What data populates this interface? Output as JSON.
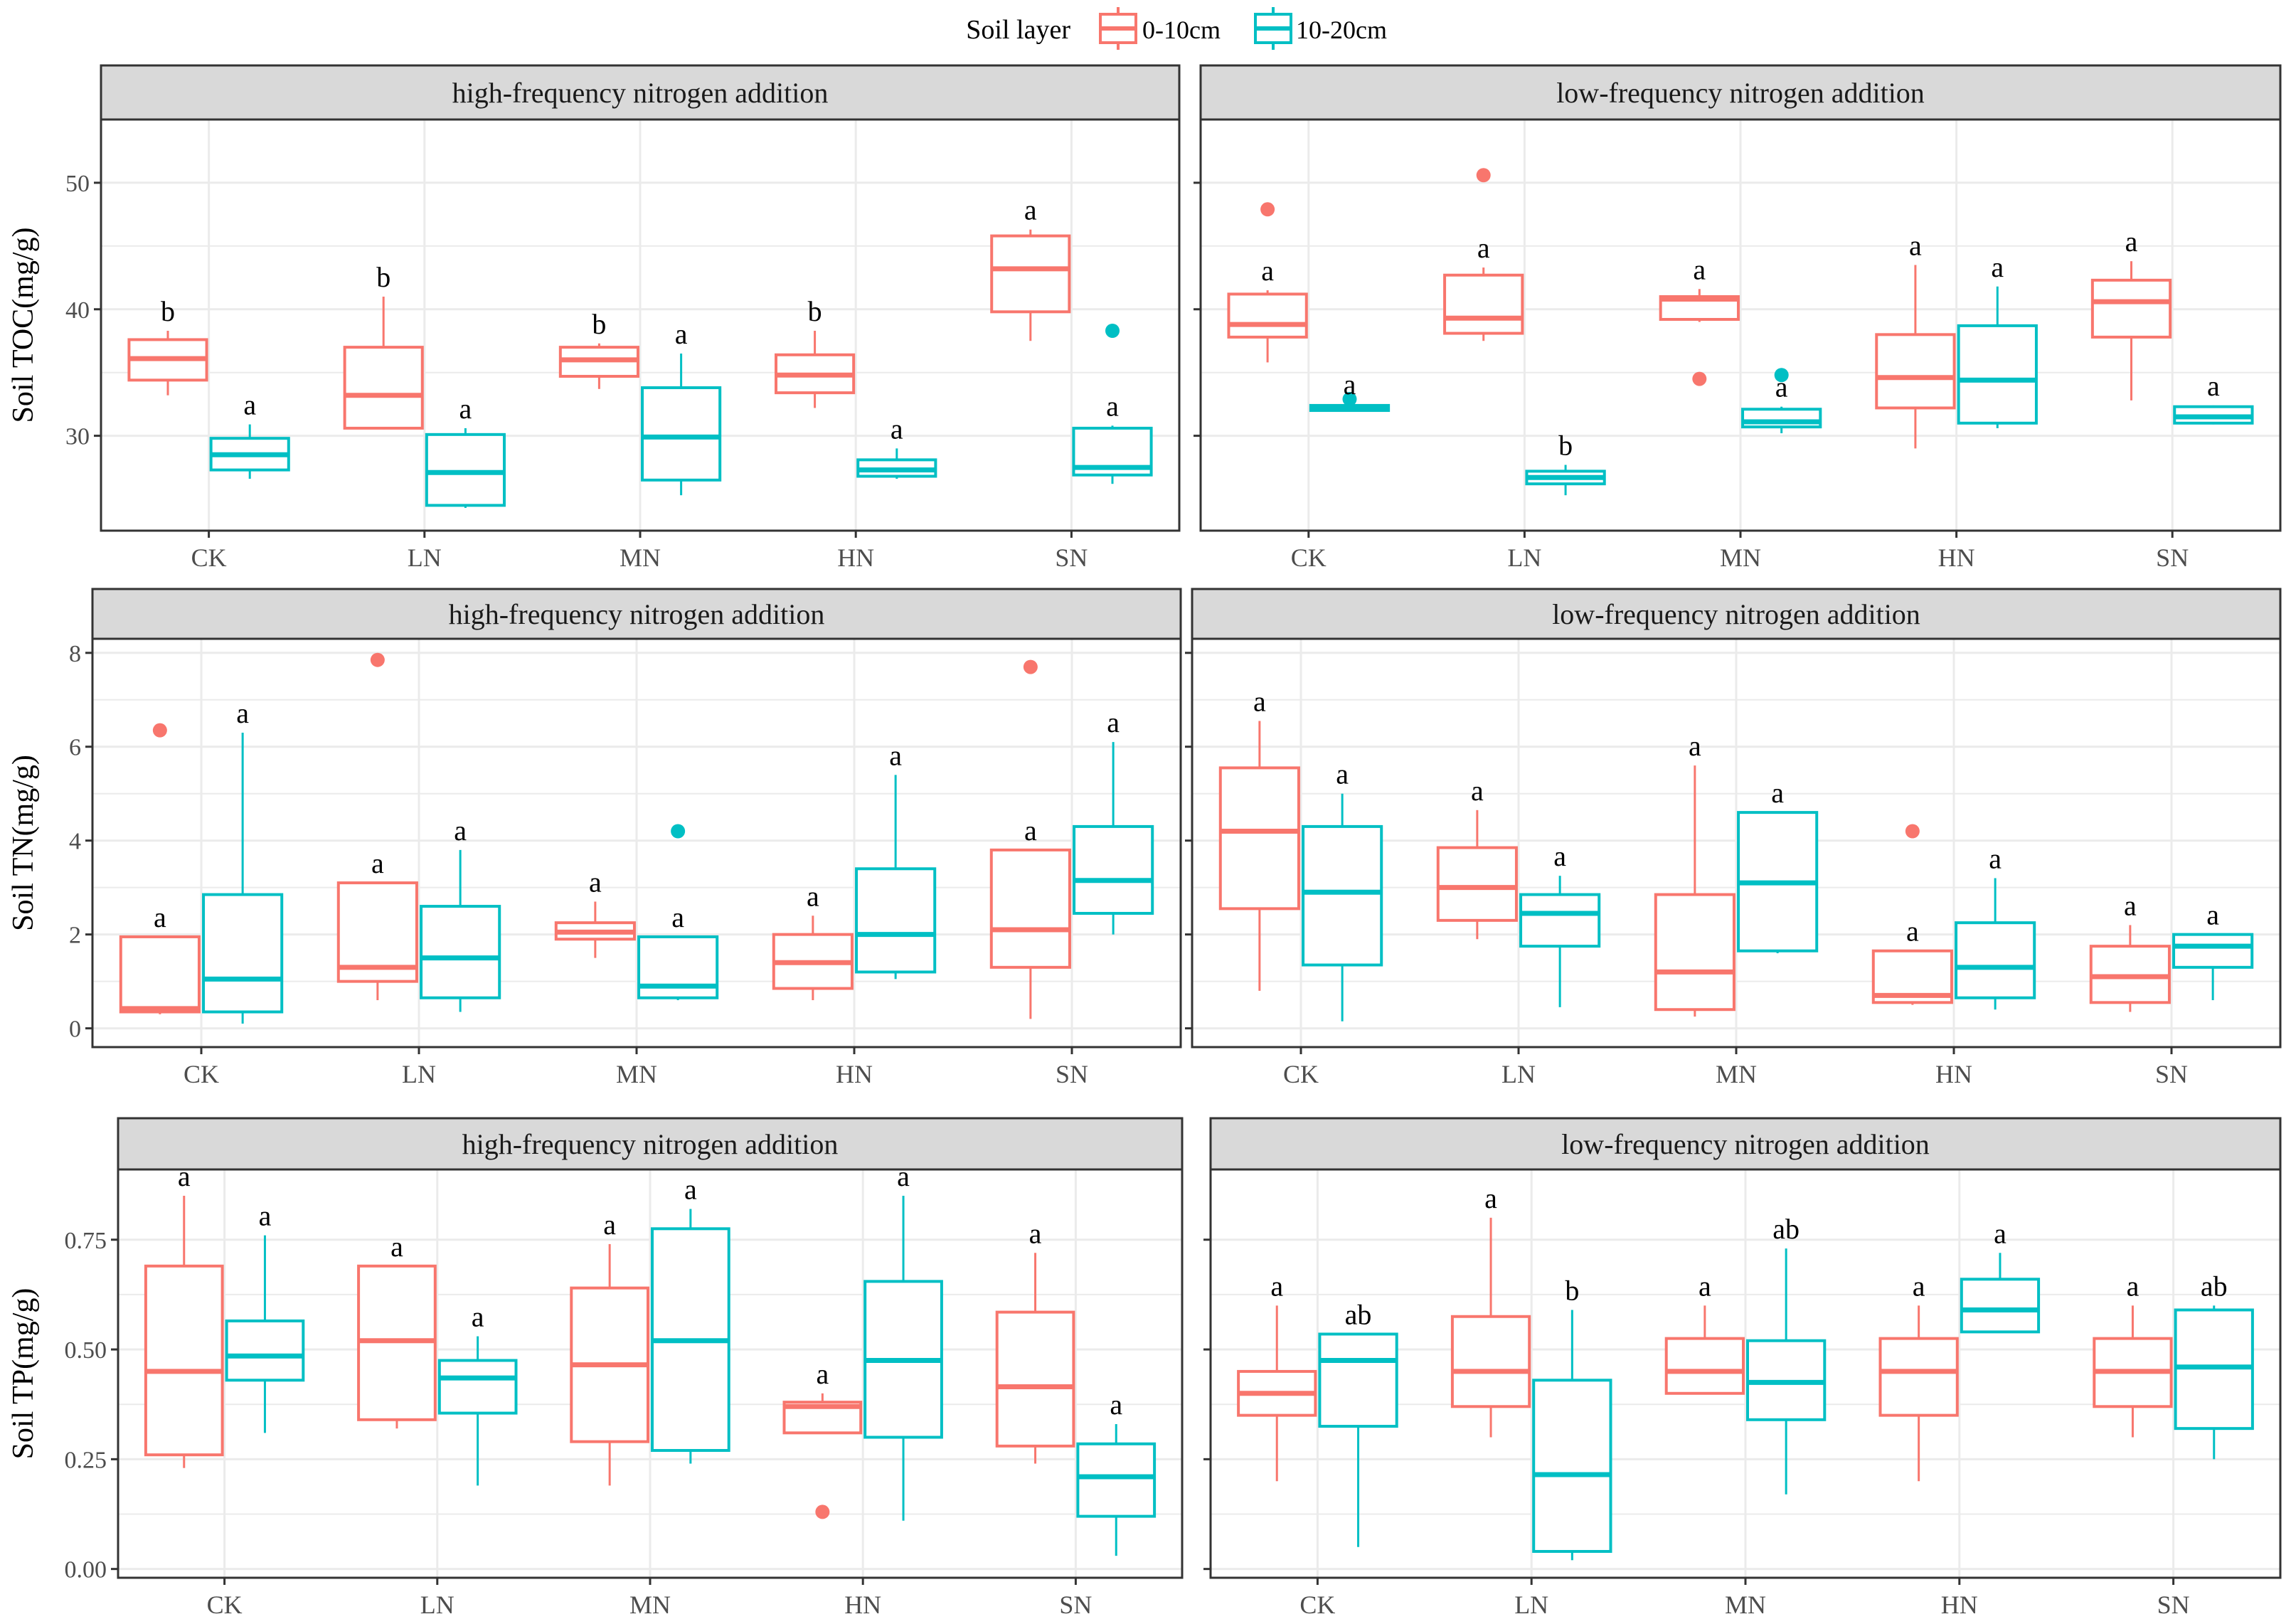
{
  "legend": {
    "title": "Soil layer",
    "entries": [
      {
        "label": "0-10cm",
        "color": "#F8766D"
      },
      {
        "label": "10-20cm",
        "color": "#00BFC4"
      }
    ]
  },
  "colors": {
    "layer_0_10": "#F8766D",
    "layer_10_20": "#00BFC4",
    "strip": "#D9D9D9",
    "grid": "#EBEBEB",
    "outline": "#333333"
  },
  "chart_data": [
    {
      "type": "box",
      "panel": "TOC high",
      "strip_label": "high-frequency nitrogen addition",
      "ylabel": "Soil TOC(mg/g)",
      "ylim": [
        22.5,
        55
      ],
      "yticks": [
        30,
        40,
        50
      ],
      "ytick_labels": [
        "30",
        "40",
        "50"
      ],
      "categories": [
        "CK",
        "LN",
        "MN",
        "HN",
        "SN"
      ],
      "series": [
        {
          "name": "0-10cm",
          "boxes": [
            {
              "min": 33.2,
              "q1": 34.4,
              "median": 36.1,
              "q3": 37.6,
              "max": 38.3,
              "outliers": [],
              "letter": "b"
            },
            {
              "min": 30.5,
              "q1": 30.6,
              "median": 33.2,
              "q3": 37.0,
              "max": 41.0,
              "outliers": [],
              "letter": "b"
            },
            {
              "min": 33.7,
              "q1": 34.7,
              "median": 36.0,
              "q3": 37.0,
              "max": 37.3,
              "outliers": [],
              "letter": "b"
            },
            {
              "min": 32.2,
              "q1": 33.4,
              "median": 34.8,
              "q3": 36.4,
              "max": 38.3,
              "outliers": [],
              "letter": "b"
            },
            {
              "min": 37.5,
              "q1": 39.8,
              "median": 43.2,
              "q3": 45.8,
              "max": 46.3,
              "outliers": [],
              "letter": "a"
            }
          ]
        },
        {
          "name": "10-20cm",
          "boxes": [
            {
              "min": 26.6,
              "q1": 27.3,
              "median": 28.5,
              "q3": 29.8,
              "max": 30.9,
              "outliers": [],
              "letter": "a"
            },
            {
              "min": 24.3,
              "q1": 24.5,
              "median": 27.1,
              "q3": 30.1,
              "max": 30.6,
              "outliers": [],
              "letter": "a"
            },
            {
              "min": 25.3,
              "q1": 26.5,
              "median": 29.9,
              "q3": 33.8,
              "max": 36.5,
              "outliers": [],
              "letter": "a"
            },
            {
              "min": 26.6,
              "q1": 26.8,
              "median": 27.3,
              "q3": 28.1,
              "max": 29.0,
              "outliers": [],
              "letter": "a"
            },
            {
              "min": 26.2,
              "q1": 26.9,
              "median": 27.5,
              "q3": 30.6,
              "max": 30.8,
              "outliers": [
                38.3
              ],
              "letter": "a"
            }
          ]
        }
      ]
    },
    {
      "type": "box",
      "panel": "TOC low",
      "strip_label": "low-frequency nitrogen addition",
      "ylabel": "",
      "ylim": [
        22.5,
        55
      ],
      "yticks": [
        30,
        40,
        50
      ],
      "ytick_labels": [
        "",
        "",
        ""
      ],
      "categories": [
        "CK",
        "LN",
        "MN",
        "HN",
        "SN"
      ],
      "series": [
        {
          "name": "0-10cm",
          "boxes": [
            {
              "min": 35.8,
              "q1": 37.8,
              "median": 38.8,
              "q3": 41.2,
              "max": 41.5,
              "outliers": [
                47.9
              ],
              "letter": "a"
            },
            {
              "min": 37.5,
              "q1": 38.1,
              "median": 39.3,
              "q3": 42.7,
              "max": 43.3,
              "outliers": [
                50.6
              ],
              "letter": "a"
            },
            {
              "min": 39.0,
              "q1": 39.2,
              "median": 40.8,
              "q3": 41.0,
              "max": 41.6,
              "outliers": [
                34.5
              ],
              "letter": "a"
            },
            {
              "min": 29.0,
              "q1": 32.2,
              "median": 34.6,
              "q3": 38.0,
              "max": 43.5,
              "outliers": [],
              "letter": "a"
            },
            {
              "min": 32.8,
              "q1": 37.8,
              "median": 40.6,
              "q3": 42.3,
              "max": 43.8,
              "outliers": [],
              "letter": "a"
            }
          ]
        },
        {
          "name": "10-20cm",
          "boxes": [
            {
              "min": 31.9,
              "q1": 32.0,
              "median": 32.2,
              "q3": 32.4,
              "max": 32.5,
              "outliers": [
                32.9
              ],
              "letter": "a"
            },
            {
              "min": 25.3,
              "q1": 26.2,
              "median": 26.7,
              "q3": 27.2,
              "max": 27.7,
              "outliers": [],
              "letter": "b"
            },
            {
              "min": 30.2,
              "q1": 30.7,
              "median": 31.1,
              "q3": 32.1,
              "max": 32.3,
              "outliers": [
                34.8
              ],
              "letter": "a"
            },
            {
              "min": 30.6,
              "q1": 31.0,
              "median": 34.4,
              "q3": 38.7,
              "max": 41.8,
              "outliers": [],
              "letter": "a"
            },
            {
              "min": 30.9,
              "q1": 31.0,
              "median": 31.5,
              "q3": 32.3,
              "max": 32.4,
              "outliers": [],
              "letter": "a"
            }
          ]
        }
      ]
    },
    {
      "type": "box",
      "panel": "TN high",
      "strip_label": "high-frequency nitrogen addition",
      "ylabel": "Soil TN(mg/g)",
      "ylim": [
        -0.4,
        8.3
      ],
      "yticks": [
        0,
        2,
        4,
        6,
        8
      ],
      "ytick_labels": [
        "0",
        "2",
        "4",
        "6",
        "8"
      ],
      "categories": [
        "CK",
        "LN",
        "MN",
        "HN",
        "SN"
      ],
      "series": [
        {
          "name": "0-10cm",
          "boxes": [
            {
              "min": 0.3,
              "q1": 0.35,
              "median": 0.42,
              "q3": 1.95,
              "max": 1.95,
              "outliers": [
                6.35
              ],
              "letter": "a"
            },
            {
              "min": 0.6,
              "q1": 1.0,
              "median": 1.3,
              "q3": 3.1,
              "max": 3.1,
              "outliers": [
                7.85
              ],
              "letter": "a"
            },
            {
              "min": 1.5,
              "q1": 1.9,
              "median": 2.05,
              "q3": 2.25,
              "max": 2.7,
              "outliers": [],
              "letter": "a"
            },
            {
              "min": 0.6,
              "q1": 0.85,
              "median": 1.4,
              "q3": 2.0,
              "max": 2.4,
              "outliers": [],
              "letter": "a"
            },
            {
              "min": 0.2,
              "q1": 1.3,
              "median": 2.1,
              "q3": 3.8,
              "max": 3.8,
              "outliers": [
                7.7
              ],
              "letter": "a"
            }
          ]
        },
        {
          "name": "10-20cm",
          "boxes": [
            {
              "min": 0.1,
              "q1": 0.35,
              "median": 1.05,
              "q3": 2.85,
              "max": 6.3,
              "outliers": [],
              "letter": "a"
            },
            {
              "min": 0.35,
              "q1": 0.65,
              "median": 1.5,
              "q3": 2.6,
              "max": 3.8,
              "outliers": [],
              "letter": "a"
            },
            {
              "min": 0.6,
              "q1": 0.65,
              "median": 0.9,
              "q3": 1.95,
              "max": 1.95,
              "outliers": [
                4.2
              ],
              "letter": "a"
            },
            {
              "min": 1.05,
              "q1": 1.2,
              "median": 2.0,
              "q3": 3.4,
              "max": 5.4,
              "outliers": [],
              "letter": "a"
            },
            {
              "min": 2.0,
              "q1": 2.45,
              "median": 3.15,
              "q3": 4.3,
              "max": 6.1,
              "outliers": [],
              "letter": "a"
            }
          ]
        }
      ]
    },
    {
      "type": "box",
      "panel": "TN low",
      "strip_label": "low-frequency nitrogen addition",
      "ylabel": "",
      "ylim": [
        -0.4,
        8.3
      ],
      "yticks": [
        0,
        2,
        4,
        6,
        8
      ],
      "ytick_labels": [
        "",
        "",
        "",
        "",
        ""
      ],
      "categories": [
        "CK",
        "LN",
        "MN",
        "HN",
        "SN"
      ],
      "series": [
        {
          "name": "0-10cm",
          "boxes": [
            {
              "min": 0.8,
              "q1": 2.55,
              "median": 4.2,
              "q3": 5.55,
              "max": 6.55,
              "outliers": [],
              "letter": "a"
            },
            {
              "min": 1.9,
              "q1": 2.3,
              "median": 3.0,
              "q3": 3.85,
              "max": 4.65,
              "outliers": [],
              "letter": "a"
            },
            {
              "min": 0.25,
              "q1": 0.4,
              "median": 1.2,
              "q3": 2.85,
              "max": 5.6,
              "outliers": [],
              "letter": "a"
            },
            {
              "min": 0.5,
              "q1": 0.55,
              "median": 0.7,
              "q3": 1.65,
              "max": 1.65,
              "outliers": [
                4.2
              ],
              "letter": "a"
            },
            {
              "min": 0.35,
              "q1": 0.55,
              "median": 1.1,
              "q3": 1.75,
              "max": 2.2,
              "outliers": [],
              "letter": "a"
            }
          ]
        },
        {
          "name": "10-20cm",
          "boxes": [
            {
              "min": 0.15,
              "q1": 1.35,
              "median": 2.9,
              "q3": 4.3,
              "max": 5.0,
              "outliers": [],
              "letter": "a"
            },
            {
              "min": 0.45,
              "q1": 1.75,
              "median": 2.45,
              "q3": 2.85,
              "max": 3.25,
              "outliers": [],
              "letter": "a"
            },
            {
              "min": 1.6,
              "q1": 1.65,
              "median": 3.1,
              "q3": 4.6,
              "max": 4.6,
              "outliers": [],
              "letter": "a"
            },
            {
              "min": 0.4,
              "q1": 0.65,
              "median": 1.3,
              "q3": 2.25,
              "max": 3.2,
              "outliers": [],
              "letter": "a"
            },
            {
              "min": 0.6,
              "q1": 1.3,
              "median": 1.75,
              "q3": 2.0,
              "max": 2.0,
              "outliers": [],
              "letter": "a"
            }
          ]
        }
      ]
    },
    {
      "type": "box",
      "panel": "TP high",
      "strip_label": "high-frequency nitrogen addition",
      "ylabel": "Soil TP(mg/g)",
      "ylim": [
        -0.02,
        0.91
      ],
      "yticks": [
        0,
        0.25,
        0.5,
        0.75
      ],
      "ytick_labels": [
        "0.00",
        "0.25",
        "0.50",
        "0.75"
      ],
      "categories": [
        "CK",
        "LN",
        "MN",
        "HN",
        "SN"
      ],
      "series": [
        {
          "name": "0-10cm",
          "boxes": [
            {
              "min": 0.23,
              "q1": 0.26,
              "median": 0.45,
              "q3": 0.69,
              "max": 0.85,
              "outliers": [],
              "letter": "a"
            },
            {
              "min": 0.32,
              "q1": 0.34,
              "median": 0.52,
              "q3": 0.69,
              "max": 0.69,
              "outliers": [],
              "letter": "a"
            },
            {
              "min": 0.19,
              "q1": 0.29,
              "median": 0.465,
              "q3": 0.64,
              "max": 0.74,
              "outliers": [],
              "letter": "a"
            },
            {
              "min": 0.31,
              "q1": 0.31,
              "median": 0.37,
              "q3": 0.38,
              "max": 0.4,
              "outliers": [
                0.13
              ],
              "letter": "a"
            },
            {
              "min": 0.24,
              "q1": 0.28,
              "median": 0.415,
              "q3": 0.585,
              "max": 0.72,
              "outliers": [],
              "letter": "a"
            }
          ]
        },
        {
          "name": "10-20cm",
          "boxes": [
            {
              "min": 0.31,
              "q1": 0.43,
              "median": 0.485,
              "q3": 0.565,
              "max": 0.76,
              "outliers": [],
              "letter": "a"
            },
            {
              "min": 0.19,
              "q1": 0.355,
              "median": 0.435,
              "q3": 0.475,
              "max": 0.53,
              "outliers": [],
              "letter": "a"
            },
            {
              "min": 0.24,
              "q1": 0.27,
              "median": 0.52,
              "q3": 0.775,
              "max": 0.82,
              "outliers": [],
              "letter": "a"
            },
            {
              "min": 0.11,
              "q1": 0.3,
              "median": 0.475,
              "q3": 0.655,
              "max": 0.85,
              "outliers": [],
              "letter": "a"
            },
            {
              "min": 0.03,
              "q1": 0.12,
              "median": 0.21,
              "q3": 0.285,
              "max": 0.33,
              "outliers": [],
              "letter": "a"
            }
          ]
        }
      ]
    },
    {
      "type": "box",
      "panel": "TP low",
      "strip_label": "low-frequency nitrogen addition",
      "ylabel": "",
      "ylim": [
        -0.02,
        0.91
      ],
      "yticks": [
        0,
        0.25,
        0.5,
        0.75
      ],
      "ytick_labels": [
        "",
        "",
        "",
        ""
      ],
      "categories": [
        "CK",
        "LN",
        "MN",
        "HN",
        "SN"
      ],
      "series": [
        {
          "name": "0-10cm",
          "boxes": [
            {
              "min": 0.2,
              "q1": 0.35,
              "median": 0.4,
              "q3": 0.45,
              "max": 0.6,
              "outliers": [],
              "letter": "a"
            },
            {
              "min": 0.3,
              "q1": 0.37,
              "median": 0.45,
              "q3": 0.575,
              "max": 0.8,
              "outliers": [],
              "letter": "a"
            },
            {
              "min": 0.4,
              "q1": 0.4,
              "median": 0.45,
              "q3": 0.525,
              "max": 0.6,
              "outliers": [],
              "letter": "a"
            },
            {
              "min": 0.2,
              "q1": 0.35,
              "median": 0.45,
              "q3": 0.525,
              "max": 0.6,
              "outliers": [],
              "letter": "a"
            },
            {
              "min": 0.3,
              "q1": 0.37,
              "median": 0.45,
              "q3": 0.525,
              "max": 0.6,
              "outliers": [],
              "letter": "a"
            }
          ]
        },
        {
          "name": "10-20cm",
          "boxes": [
            {
              "min": 0.05,
              "q1": 0.325,
              "median": 0.475,
              "q3": 0.535,
              "max": 0.535,
              "outliers": [],
              "letter": "ab"
            },
            {
              "min": 0.02,
              "q1": 0.04,
              "median": 0.215,
              "q3": 0.43,
              "max": 0.59,
              "outliers": [],
              "letter": "b"
            },
            {
              "min": 0.17,
              "q1": 0.34,
              "median": 0.425,
              "q3": 0.52,
              "max": 0.73,
              "outliers": [],
              "letter": "ab"
            },
            {
              "min": 0.54,
              "q1": 0.54,
              "median": 0.59,
              "q3": 0.66,
              "max": 0.72,
              "outliers": [],
              "letter": "a"
            },
            {
              "min": 0.25,
              "q1": 0.32,
              "median": 0.46,
              "q3": 0.59,
              "max": 0.6,
              "outliers": [],
              "letter": "ab"
            }
          ]
        }
      ]
    }
  ]
}
